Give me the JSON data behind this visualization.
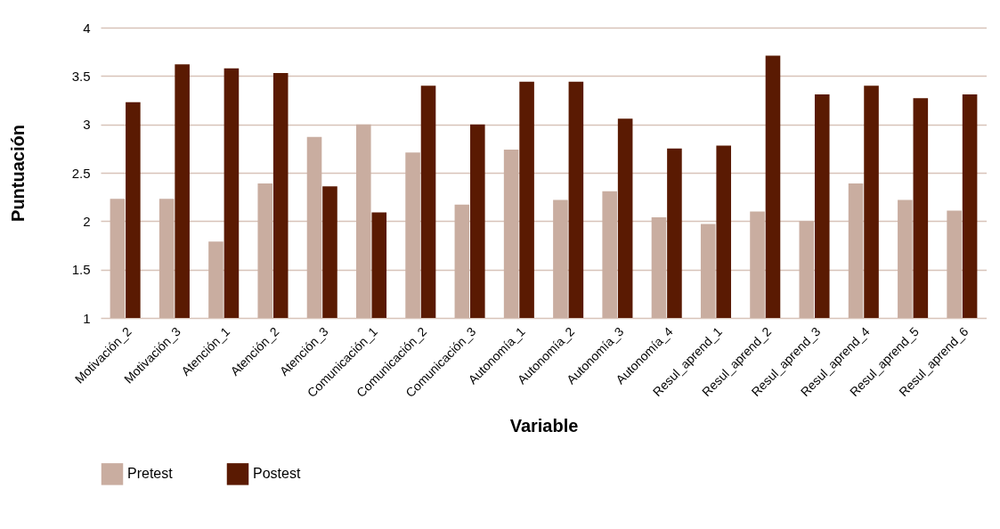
{
  "chart_data": {
    "type": "bar",
    "xlabel": "Variable",
    "ylabel": "Puntuación",
    "categories": [
      "Motivación_2",
      "Motivación_3",
      "Atención_1",
      "Atención_2",
      "Atención_3",
      "Comunicación_1",
      "Comunicación_2",
      "Comunicación_3",
      "Autonomía_1",
      "Autonomía_2",
      "Autonomía_3",
      "Autonomía_4",
      "Resul_aprend_1",
      "Resul_aprend_2",
      "Resul_aprend_3",
      "Resul_aprend_4",
      "Resul_aprend_5",
      "Resul_aprend_6"
    ],
    "series": [
      {
        "name": "Pretest",
        "color": "#c9ada0",
        "values": [
          2.23,
          2.23,
          1.79,
          2.39,
          2.87,
          3.0,
          2.71,
          2.17,
          2.74,
          2.22,
          2.31,
          2.04,
          1.97,
          2.1,
          2.0,
          2.39,
          2.22,
          2.11
        ]
      },
      {
        "name": "Postest",
        "color": "#5a1a02",
        "values": [
          3.23,
          3.62,
          3.58,
          3.53,
          2.36,
          2.09,
          3.4,
          3.0,
          3.44,
          3.44,
          3.06,
          2.75,
          2.78,
          3.71,
          3.31,
          3.4,
          3.27,
          3.31
        ]
      }
    ],
    "ylim": [
      1,
      4
    ],
    "yticks": [
      1,
      1.5,
      2,
      2.5,
      3,
      3.5,
      4
    ],
    "grid": "y",
    "legend": "bottom"
  }
}
